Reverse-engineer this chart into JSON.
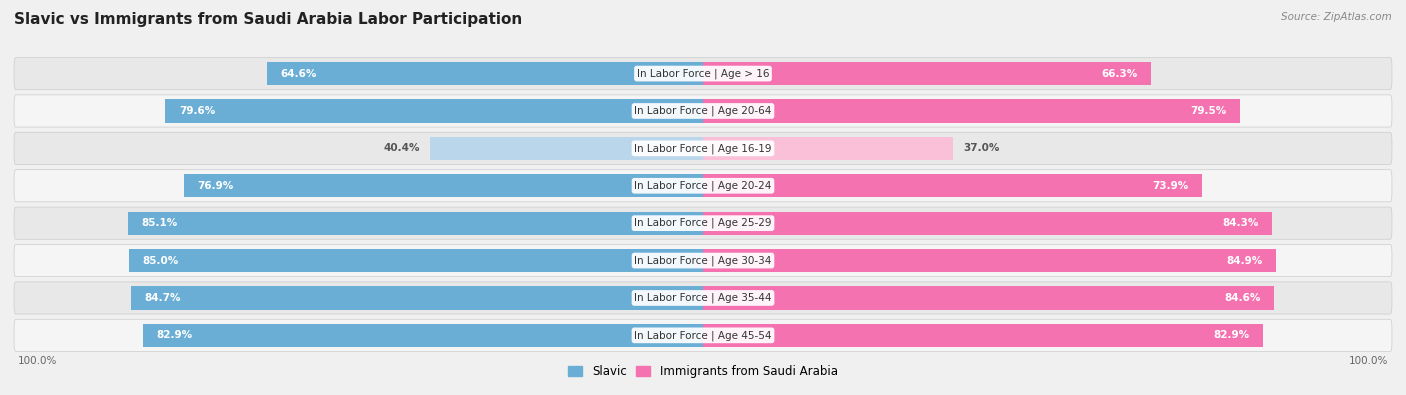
{
  "title": "Slavic vs Immigrants from Saudi Arabia Labor Participation",
  "source": "Source: ZipAtlas.com",
  "categories": [
    "In Labor Force | Age > 16",
    "In Labor Force | Age 20-64",
    "In Labor Force | Age 16-19",
    "In Labor Force | Age 20-24",
    "In Labor Force | Age 25-29",
    "In Labor Force | Age 30-34",
    "In Labor Force | Age 35-44",
    "In Labor Force | Age 45-54"
  ],
  "slavic_values": [
    64.6,
    79.6,
    40.4,
    76.9,
    85.1,
    85.0,
    84.7,
    82.9
  ],
  "immigrant_values": [
    66.3,
    79.5,
    37.0,
    73.9,
    84.3,
    84.9,
    84.6,
    82.9
  ],
  "slavic_color": "#6aaed6",
  "slavic_color_light": "#bad6ea",
  "immigrant_color": "#f472b0",
  "immigrant_color_light": "#f9c0d8",
  "bar_height": 0.62,
  "background_color": "#f0f0f0",
  "row_bg_even": "#e8e8e8",
  "row_bg_odd": "#f5f5f5",
  "title_fontsize": 11,
  "label_fontsize": 7.5,
  "value_fontsize": 7.5,
  "legend_fontsize": 8.5,
  "footer_fontsize": 7.5,
  "footer_value": "100.0%",
  "max_val": 100.0
}
